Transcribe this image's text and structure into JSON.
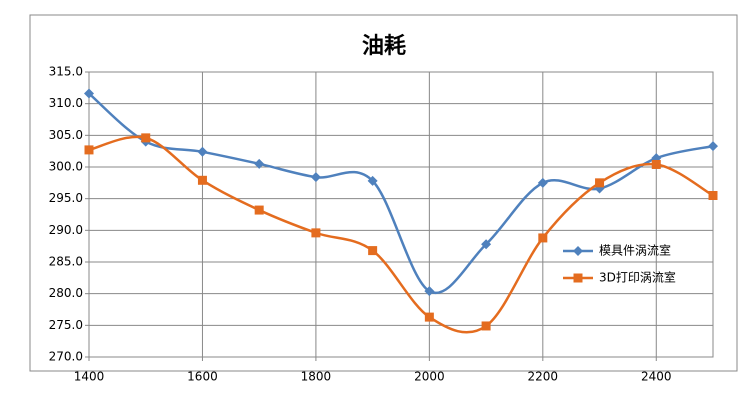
{
  "chart_data": {
    "type": "line",
    "title": "油耗",
    "x": [
      1400,
      1500,
      1600,
      1700,
      1800,
      1900,
      2000,
      2100,
      2200,
      2300,
      2400,
      2500
    ],
    "series": [
      {
        "name": "模具件涡流室",
        "color": "#4f81bd",
        "marker": "diamond",
        "values": [
          311.6,
          304.0,
          302.4,
          300.5,
          298.4,
          297.8,
          280.4,
          287.8,
          297.5,
          296.6,
          301.4,
          303.3
        ]
      },
      {
        "name": "3D打印涡流室",
        "color": "#e46c1f",
        "marker": "square",
        "values": [
          302.7,
          304.6,
          297.9,
          293.2,
          289.6,
          286.8,
          276.3,
          274.9,
          288.8,
          297.5,
          300.4,
          295.5
        ]
      }
    ],
    "smooth": true,
    "xlim": [
      1400,
      2500
    ],
    "xticks": [
      1400,
      1600,
      1800,
      2000,
      2200,
      2400
    ],
    "ylim": [
      270,
      315
    ],
    "yticks": [
      {
        "value": 270,
        "label": "270.0"
      },
      {
        "value": 275,
        "label": "275.0"
      },
      {
        "value": 280,
        "label": "280.0"
      },
      {
        "value": 285,
        "label": "285.0"
      },
      {
        "value": 290,
        "label": "290.0"
      },
      {
        "value": 295,
        "label": "295.0"
      },
      {
        "value": 300,
        "label": "300.0"
      },
      {
        "value": 305,
        "label": "305.0"
      },
      {
        "value": 310,
        "label": "310.0"
      },
      {
        "value": 315,
        "label": "315.0"
      }
    ],
    "grid": true,
    "legend": "right"
  }
}
